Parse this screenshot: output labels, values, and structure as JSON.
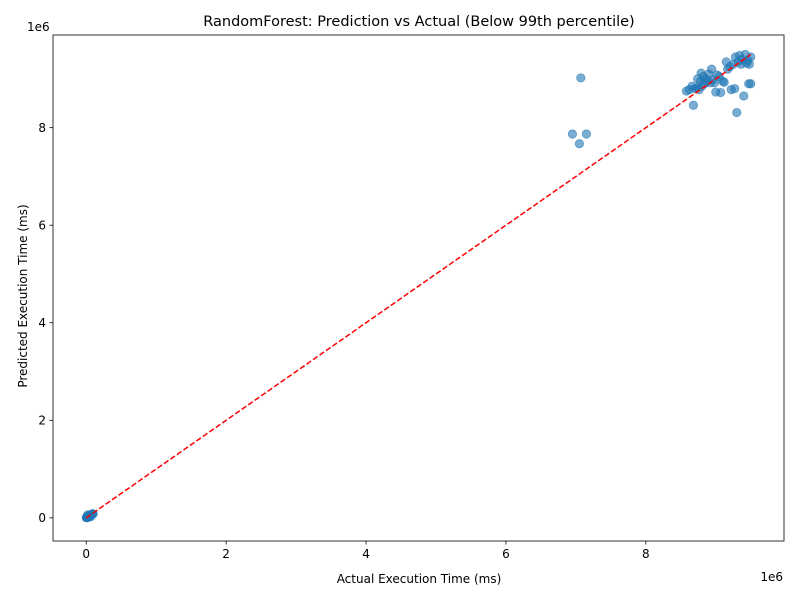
{
  "chart_data": {
    "type": "scatter",
    "title": "RandomForest: Prediction vs Actual (Below 99th percentile)",
    "xlabel": "Actual Execution Time (ms)",
    "ylabel": "Predicted Execution Time (ms)",
    "x_offset_text": "1e6",
    "y_offset_text": "1e6",
    "xlim": [
      -0.475,
      9.975
    ],
    "ylim": [
      -0.475,
      9.9
    ],
    "x_ticks": [
      0,
      2,
      4,
      6,
      8
    ],
    "x_tick_labels": [
      "0",
      "2",
      "4",
      "6",
      "8"
    ],
    "y_ticks": [
      0,
      2,
      4,
      6,
      8
    ],
    "y_tick_labels": [
      "0",
      "2",
      "4",
      "6",
      "8"
    ],
    "grid": false,
    "point_color": "#1f77b4",
    "point_alpha": 0.6,
    "reference_line": {
      "x": [
        0,
        9.5
      ],
      "y": [
        0,
        9.5
      ],
      "color": "#ff0000",
      "style": "dashed"
    },
    "series": [
      {
        "points": [
          [
            0.0,
            0.0
          ],
          [
            0.005,
            0.01
          ],
          [
            0.01,
            0.02
          ],
          [
            0.015,
            0.005
          ],
          [
            0.02,
            0.03
          ],
          [
            0.03,
            0.015
          ],
          [
            0.04,
            0.045
          ],
          [
            0.05,
            0.04
          ],
          [
            0.06,
            0.06
          ],
          [
            0.07,
            0.05
          ],
          [
            0.08,
            0.075
          ],
          [
            0.09,
            0.085
          ],
          [
            0.1,
            0.08
          ],
          [
            0.02,
            0.06
          ],
          [
            0.06,
            0.02
          ],
          [
            6.95,
            7.87
          ],
          [
            7.05,
            7.67
          ],
          [
            7.15,
            7.87
          ],
          [
            7.07,
            9.02
          ],
          [
            8.58,
            8.75
          ],
          [
            8.62,
            8.78
          ],
          [
            8.66,
            8.85
          ],
          [
            8.68,
            8.46
          ],
          [
            8.7,
            8.8
          ],
          [
            8.73,
            8.82
          ],
          [
            8.74,
            9.0
          ],
          [
            8.76,
            8.78
          ],
          [
            8.78,
            8.95
          ],
          [
            8.79,
            9.12
          ],
          [
            8.8,
            8.85
          ],
          [
            8.82,
            9.05
          ],
          [
            8.84,
            8.9
          ],
          [
            8.86,
            9.0
          ],
          [
            8.87,
            8.95
          ],
          [
            8.9,
            9.1
          ],
          [
            8.92,
            8.92
          ],
          [
            8.94,
            9.2
          ],
          [
            8.96,
            8.98
          ],
          [
            8.98,
            8.92
          ],
          [
            9.0,
            8.73
          ],
          [
            9.02,
            9.08
          ],
          [
            9.05,
            9.05
          ],
          [
            9.07,
            8.72
          ],
          [
            9.1,
            8.95
          ],
          [
            9.12,
            8.93
          ],
          [
            9.15,
            9.35
          ],
          [
            9.17,
            9.2
          ],
          [
            9.2,
            9.25
          ],
          [
            9.22,
            8.78
          ],
          [
            9.25,
            9.3
          ],
          [
            9.27,
            8.8
          ],
          [
            9.28,
            9.45
          ],
          [
            9.3,
            8.31
          ],
          [
            9.32,
            9.35
          ],
          [
            9.34,
            9.48
          ],
          [
            9.36,
            9.3
          ],
          [
            9.38,
            9.4
          ],
          [
            9.4,
            8.65
          ],
          [
            9.42,
            9.5
          ],
          [
            9.44,
            9.32
          ],
          [
            9.46,
            9.38
          ],
          [
            9.48,
            9.3
          ],
          [
            9.5,
            9.45
          ],
          [
            9.5,
            8.9
          ],
          [
            9.47,
            8.9
          ]
        ]
      }
    ]
  }
}
